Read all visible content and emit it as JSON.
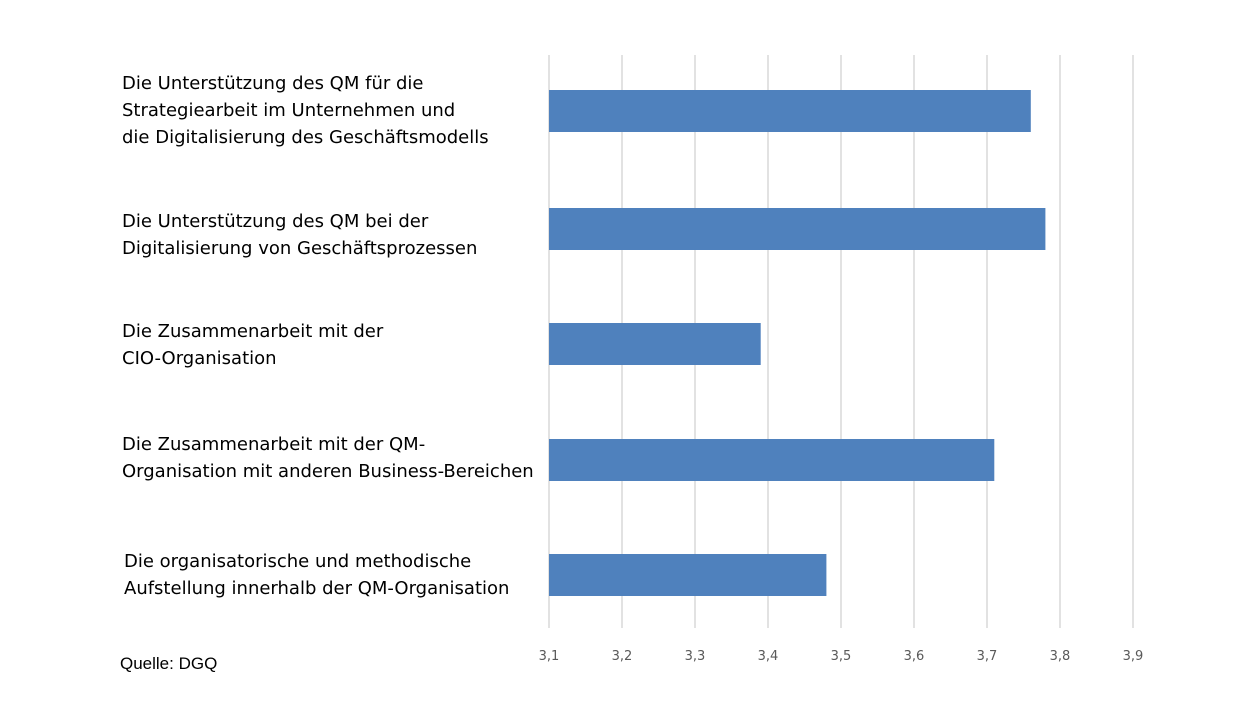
{
  "chart_data": {
    "type": "bar",
    "orientation": "horizontal",
    "categories": [
      "Die Unterstützung des QM für die\nStrategiearbeit im Unternehmen und\ndie Digitalisierung des Geschäftsmodells",
      "Die Unterstützung des QM bei  der\nDigitalisierung von Geschäftsprozessen",
      "Die Zusammenarbeit mit der\nCIO-Organisation",
      "Die Zusammenarbeit mit der QM-\nOrganisation mit anderen Business-Bereichen",
      "Die organisatorische und methodische\nAufstellung innerhalb der QM-Organisation"
    ],
    "values": [
      3.76,
      3.78,
      3.39,
      3.71,
      3.48
    ],
    "xlim": [
      3.1,
      3.9
    ],
    "xticks": [
      "3,1",
      "3,2",
      "3,3",
      "3,4",
      "3,5",
      "3,6",
      "3,7",
      "3,8",
      "3,9"
    ],
    "grid": true,
    "bar_color": "#4f81bd",
    "grid_color": "#d9d9d9",
    "title": "",
    "xlabel": "",
    "ylabel": ""
  },
  "source_note": "Quelle: DGQ"
}
